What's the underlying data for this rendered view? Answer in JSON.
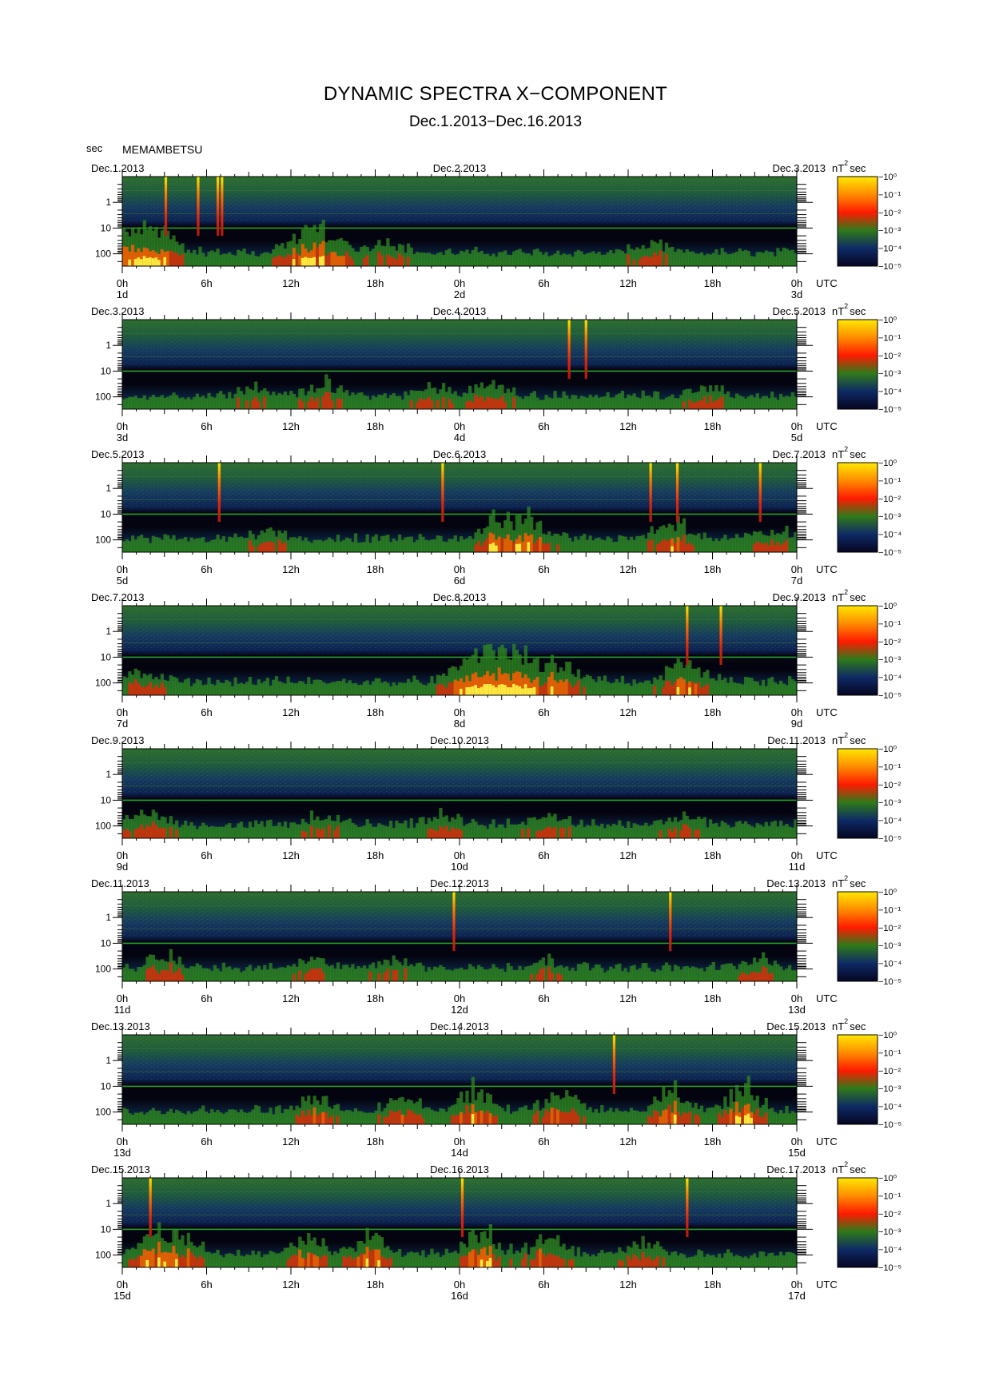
{
  "header": {
    "title": "DYNAMIC SPECTRA X−COMPONENT",
    "subtitle": "Dec.1.2013−Dec.16.2013",
    "y_unit": "sec",
    "station": "MEMAMBETSU"
  },
  "chart_data": {
    "type": "heatmap",
    "x_axis": {
      "tick_labels": [
        "0h",
        "6h",
        "12h",
        "18h",
        "0h",
        "6h",
        "12h",
        "18h",
        "0h"
      ],
      "unit_label": "UTC"
    },
    "y_axis": {
      "label": "sec",
      "scale": "log",
      "tick_labels": [
        "1",
        "10",
        "100"
      ],
      "range": [
        0.1,
        300
      ]
    },
    "colorbar": {
      "unit": "nT²sec",
      "unit_base": "nT",
      "unit_sup": "2",
      "unit_tail": "sec",
      "tick_labels": [
        "−10⁰",
        "−10⁻¹",
        "−10⁻²",
        "−10⁻³",
        "−10⁻⁴",
        "−10⁻⁵"
      ],
      "range": [
        1e-05,
        1
      ],
      "colors": [
        "#050520",
        "#0e2a66",
        "#2f7a1a",
        "#ff1a00",
        "#ff8c00",
        "#ffe800"
      ]
    },
    "panels": [
      {
        "date_left": "Dec.1.2013",
        "date_mid": "Dec.2.2013",
        "date_right": "Dec.3.2013",
        "day_labels": [
          "1d",
          "2d",
          "3d"
        ],
        "spikes_hours": [
          3.1,
          5.4,
          6.8,
          7.1
        ],
        "burst_centers_hours": [
          0.5,
          2.5,
          12.5,
          14.5,
          19.0,
          37.5
        ],
        "burst_levels": [
          0.7,
          0.8,
          0.5,
          0.7,
          0.4,
          0.3
        ]
      },
      {
        "date_left": "Dec.3.2013",
        "date_mid": "Dec.4.2013",
        "date_right": "Dec.5.2013",
        "day_labels": [
          "3d",
          "4d",
          "5d"
        ],
        "spikes_hours": [
          31.8,
          33.0
        ],
        "burst_centers_hours": [
          9.0,
          14.0,
          22.0,
          26.0,
          41.0
        ],
        "burst_levels": [
          0.3,
          0.4,
          0.3,
          0.4,
          0.3
        ]
      },
      {
        "date_left": "Dec.5.2013",
        "date_mid": "Dec.6.2013",
        "date_right": "Dec.7.2013",
        "day_labels": [
          "5d",
          "6d",
          "7d"
        ],
        "spikes_hours": [
          6.9,
          22.8,
          37.6,
          39.5,
          45.4
        ],
        "burst_centers_hours": [
          10.5,
          26.5,
          29.0,
          39.0,
          46.0
        ],
        "burst_levels": [
          0.3,
          0.6,
          0.7,
          0.6,
          0.4
        ]
      },
      {
        "date_left": "Dec.7.2013",
        "date_mid": "Dec.8.2013",
        "date_right": "Dec.9.2013",
        "day_labels": [
          "7d",
          "8d",
          "9d"
        ],
        "spikes_hours": [
          42.6,
          40.2
        ],
        "burst_centers_hours": [
          1.5,
          24.5,
          26.5,
          28.0,
          31.0,
          40.0
        ],
        "burst_levels": [
          0.4,
          0.8,
          1.0,
          0.9,
          0.6,
          0.7
        ]
      },
      {
        "date_left": "Dec.9.2013",
        "date_mid": "Dec.10.2013",
        "date_right": "Dec.11.2013",
        "day_labels": [
          "9d",
          "10d",
          "11d"
        ],
        "spikes_hours": [],
        "burst_centers_hours": [
          2.0,
          14.0,
          22.5,
          30.0,
          40.0
        ],
        "burst_levels": [
          0.4,
          0.3,
          0.4,
          0.4,
          0.3
        ]
      },
      {
        "date_left": "Dec.11.2013",
        "date_mid": "Dec.12.2013",
        "date_right": "Dec.13.2013",
        "day_labels": [
          "11d",
          "12d",
          "13d"
        ],
        "spikes_hours": [
          23.6,
          39.0
        ],
        "burst_centers_hours": [
          3.0,
          13.5,
          19.0,
          30.0,
          45.0
        ],
        "burst_levels": [
          0.4,
          0.3,
          0.3,
          0.3,
          0.3
        ]
      },
      {
        "date_left": "Dec.13.2013",
        "date_mid": "Dec.14.2013",
        "date_right": "Dec.15.2013",
        "day_labels": [
          "13d",
          "14d",
          "15d"
        ],
        "spikes_hours": [
          35.0
        ],
        "burst_centers_hours": [
          13.5,
          20.0,
          25.0,
          31.0,
          39.0,
          44.0
        ],
        "burst_levels": [
          0.5,
          0.5,
          0.7,
          0.6,
          0.7,
          0.8
        ]
      },
      {
        "date_left": "Dec.15.2013",
        "date_mid": "Dec.16.2013",
        "date_right": "Dec.17.2013",
        "day_labels": [
          "15d",
          "16d",
          "17d"
        ],
        "spikes_hours": [
          2.0,
          24.2,
          40.2
        ],
        "burst_centers_hours": [
          2.2,
          4.5,
          13.0,
          17.5,
          25.5,
          30.0,
          37.0
        ],
        "burst_levels": [
          0.7,
          0.5,
          0.6,
          0.7,
          0.7,
          0.5,
          0.4
        ]
      }
    ]
  }
}
